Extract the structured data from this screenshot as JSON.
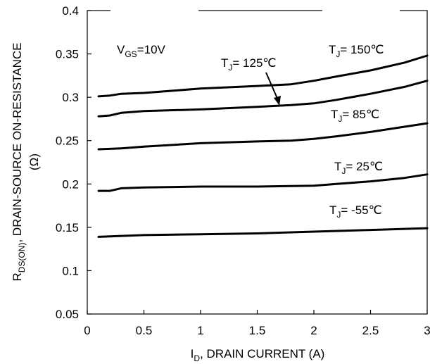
{
  "chart_data": {
    "type": "line",
    "xlabel": {
      "main": "I",
      "sub": "D",
      "rest": ", DRAIN CURRENT (A)"
    },
    "ylabel": {
      "main": "R",
      "sub": "DS(ON)",
      "rest": ", DRAIN-SOURCE ON-RESISTANCE",
      "unit": "(Ω)"
    },
    "xlim": [
      0,
      3
    ],
    "ylim": [
      0.05,
      0.4
    ],
    "x_ticks": [
      0,
      0.5,
      1,
      1.5,
      2,
      2.5,
      3
    ],
    "x_tick_labels": [
      "0",
      "0.5",
      "1",
      "1.5",
      "2",
      "2.5",
      "3"
    ],
    "y_ticks": [
      0.05,
      0.1,
      0.15,
      0.2,
      0.25,
      0.3,
      0.35,
      0.4
    ],
    "y_tick_labels": [
      "0.05",
      "0.1",
      "0.15",
      "0.2",
      "0.25",
      "0.3",
      "0.35",
      "0.4"
    ],
    "grid": false,
    "condition": {
      "main": "V",
      "sub": "GS",
      "rest": "=10V"
    },
    "series": [
      {
        "name": "T_J= 150℃",
        "label_main": "T",
        "label_sub": "J",
        "label_rest": "= 150℃",
        "x": [
          0.1,
          0.2,
          0.3,
          0.5,
          1.0,
          1.5,
          1.8,
          2.0,
          2.2,
          2.5,
          2.8,
          3.0
        ],
        "y": [
          0.301,
          0.302,
          0.304,
          0.305,
          0.31,
          0.313,
          0.315,
          0.319,
          0.324,
          0.331,
          0.34,
          0.348
        ]
      },
      {
        "name": "T_J= 125℃",
        "label_main": "T",
        "label_sub": "J",
        "label_rest": "= 125℃",
        "x": [
          0.1,
          0.2,
          0.3,
          0.5,
          1.0,
          1.5,
          1.8,
          2.0,
          2.2,
          2.5,
          2.8,
          3.0
        ],
        "y": [
          0.278,
          0.279,
          0.282,
          0.284,
          0.286,
          0.289,
          0.291,
          0.293,
          0.297,
          0.304,
          0.312,
          0.319
        ]
      },
      {
        "name": "T_J= 85℃",
        "label_main": "T",
        "label_sub": "J",
        "label_rest": "= 85℃",
        "x": [
          0.1,
          0.3,
          0.5,
          1.0,
          1.5,
          1.8,
          2.0,
          2.2,
          2.5,
          2.8,
          3.0
        ],
        "y": [
          0.24,
          0.241,
          0.243,
          0.247,
          0.249,
          0.25,
          0.252,
          0.255,
          0.26,
          0.266,
          0.27
        ]
      },
      {
        "name": "T_J= 25℃",
        "label_main": "T",
        "label_sub": "J",
        "label_rest": "= 25℃",
        "x": [
          0.1,
          0.2,
          0.3,
          0.5,
          1.0,
          1.5,
          2.0,
          2.2,
          2.5,
          2.8,
          3.0
        ],
        "y": [
          0.192,
          0.192,
          0.195,
          0.196,
          0.197,
          0.197,
          0.198,
          0.2,
          0.203,
          0.207,
          0.211
        ]
      },
      {
        "name": "T_J= -55℃",
        "label_main": "T",
        "label_sub": "J",
        "label_rest": "= -55℃",
        "x": [
          0.1,
          0.5,
          1.0,
          1.5,
          2.0,
          2.5,
          3.0
        ],
        "y": [
          0.139,
          0.141,
          0.142,
          0.143,
          0.145,
          0.147,
          0.149
        ]
      }
    ]
  }
}
